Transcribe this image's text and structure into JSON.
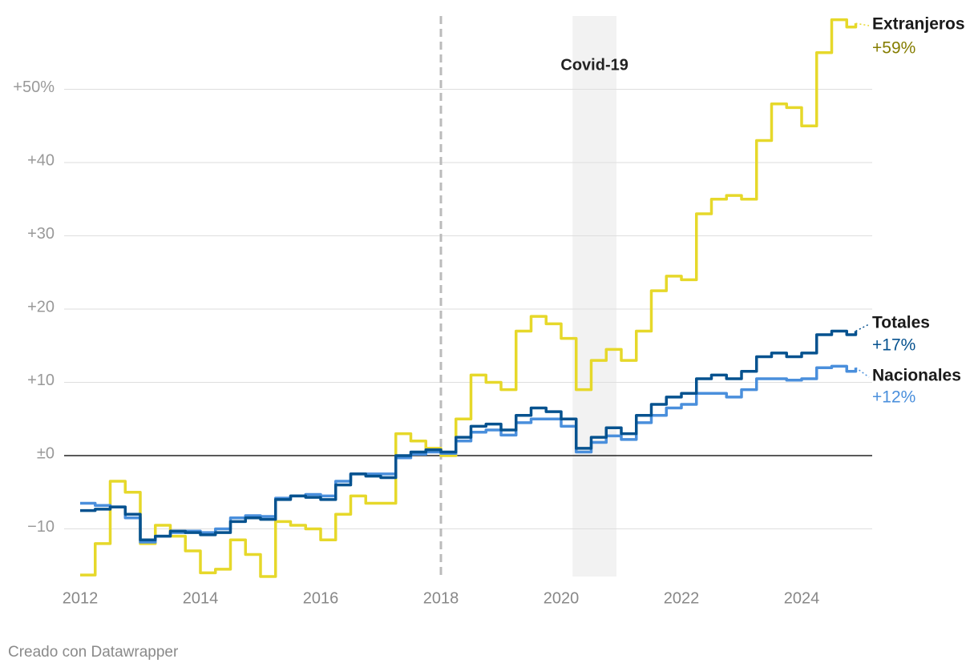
{
  "chart_data": {
    "type": "line",
    "step": true,
    "x": [
      2012,
      2012.25,
      2012.5,
      2012.75,
      2013,
      2013.25,
      2013.5,
      2013.75,
      2014,
      2014.25,
      2014.5,
      2014.75,
      2015,
      2015.25,
      2015.5,
      2015.75,
      2016,
      2016.25,
      2016.5,
      2016.75,
      2017,
      2017.25,
      2017.5,
      2017.75,
      2018,
      2018.25,
      2018.5,
      2018.75,
      2019,
      2019.25,
      2019.5,
      2019.75,
      2020,
      2020.25,
      2020.5,
      2020.75,
      2021,
      2021.25,
      2021.5,
      2021.75,
      2022,
      2022.25,
      2022.5,
      2022.75,
      2023,
      2023.25,
      2023.5,
      2023.75,
      2024,
      2024.25,
      2024.5,
      2024.75,
      2024.9
    ],
    "series": [
      {
        "name": "Extranjeros",
        "color": "#e6d82a",
        "label": "+59%",
        "label_color": "#857d00",
        "values": [
          -16.3,
          -12,
          -3.5,
          -5,
          -12,
          -9.5,
          -11,
          -13,
          -16,
          -15.5,
          -11.5,
          -13.5,
          -16.5,
          -9,
          -9.5,
          -10,
          -11.5,
          -8,
          -5.5,
          -6.5,
          -6.5,
          3,
          2,
          1,
          0,
          5,
          11,
          10,
          9,
          17,
          19,
          18,
          16,
          9,
          13,
          14.5,
          13,
          17,
          22.5,
          24.5,
          24,
          33,
          35,
          35.5,
          35,
          43,
          48,
          47.5,
          45,
          55,
          59.5,
          58.5,
          59
        ]
      },
      {
        "name": "Nacionales",
        "color": "#4a8fdc",
        "label": "+12%",
        "label_color": "#4a8fdc",
        "values": [
          -6.5,
          -6.8,
          -7,
          -8.5,
          -11.8,
          -11,
          -10.5,
          -10.3,
          -10.5,
          -10,
          -8.5,
          -8.2,
          -8.3,
          -5.8,
          -5.5,
          -5.3,
          -5.5,
          -3.5,
          -2.5,
          -2.5,
          -2.5,
          -0.3,
          0.2,
          0.5,
          0.3,
          2,
          3.2,
          3.5,
          2.8,
          4.5,
          5,
          5,
          4,
          0.5,
          1.8,
          2.7,
          2.2,
          4.5,
          5.5,
          6.5,
          7,
          8.5,
          8.5,
          8,
          9,
          10.5,
          10.5,
          10.3,
          10.5,
          12,
          12.2,
          11.5,
          12
        ]
      },
      {
        "name": "Totales",
        "color": "#06528f",
        "label": "+17%",
        "label_color": "#06528f",
        "values": [
          -7.5,
          -7.3,
          -7,
          -8,
          -11.5,
          -11,
          -10.3,
          -10.5,
          -10.8,
          -10.5,
          -9,
          -8.5,
          -8.7,
          -6,
          -5.5,
          -5.7,
          -6,
          -4,
          -2.5,
          -2.8,
          -3,
          0,
          0.5,
          0.8,
          0.5,
          2.5,
          4,
          4.3,
          3.5,
          5.5,
          6.5,
          6,
          5,
          1,
          2.5,
          3.8,
          3,
          5.5,
          7,
          8,
          8.5,
          10.5,
          11,
          10.5,
          11.5,
          13.5,
          14,
          13.5,
          14,
          16.5,
          17,
          16.5,
          17
        ]
      }
    ],
    "xlim": [
      2012,
      2025
    ],
    "xticks": [
      2012,
      2014,
      2016,
      2018,
      2020,
      2022,
      2024
    ],
    "ylim": [
      -16.5,
      60
    ],
    "yticks": [
      {
        "value": -10,
        "label": "−10"
      },
      {
        "value": 0,
        "label": "±0"
      },
      {
        "value": 10,
        "label": "+10"
      },
      {
        "value": 20,
        "label": "+20"
      },
      {
        "value": 30,
        "label": "+30"
      },
      {
        "value": 40,
        "label": "+40"
      },
      {
        "value": 50,
        "label": "+50%"
      }
    ],
    "grid": true,
    "marker_line": 2018,
    "shade": {
      "range": [
        2020.19,
        2020.92
      ],
      "label": "Covid-19"
    },
    "footer": "Creado con Datawrapper"
  }
}
